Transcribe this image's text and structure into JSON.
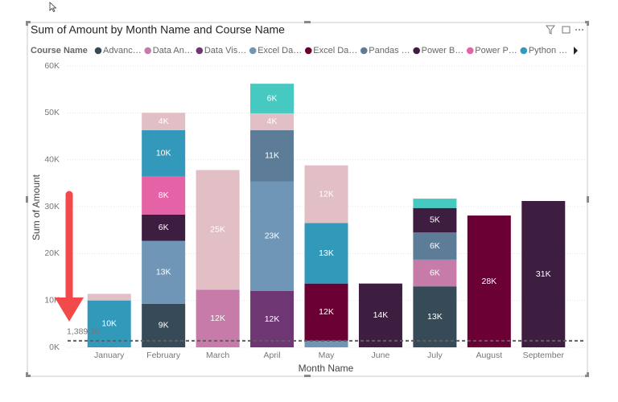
{
  "chart_data": {
    "type": "stacked_bar",
    "title": "Sum of Amount by Month Name and Course Name",
    "legend_title": "Course Name",
    "x_label": "Month Name",
    "y_label": "Sum of Amount",
    "categories": [
      "January",
      "February",
      "March",
      "April",
      "May",
      "June",
      "July",
      "August",
      "September"
    ],
    "series": [
      {
        "name": "Advanc…",
        "color": "#374a57",
        "values": [
          null,
          9300,
          null,
          null,
          null,
          null,
          13000,
          null,
          null
        ],
        "value_labels": [
          null,
          "9K",
          null,
          null,
          null,
          null,
          "13K",
          null,
          null
        ]
      },
      {
        "name": "Data An…",
        "color": "#c77ba9",
        "values": [
          null,
          null,
          12300,
          null,
          null,
          null,
          5700,
          null,
          null
        ],
        "value_labels": [
          null,
          null,
          "12K",
          null,
          null,
          null,
          "6K",
          null,
          null
        ]
      },
      {
        "name": "Data Vis…",
        "color": "#6e3773",
        "values": [
          null,
          null,
          null,
          12000,
          null,
          null,
          null,
          null,
          null
        ],
        "value_labels": [
          null,
          null,
          null,
          "12K",
          null,
          null,
          null,
          null,
          null
        ]
      },
      {
        "name": "Excel Da…",
        "color": "#6f96b6",
        "values": [
          null,
          13400,
          null,
          23400,
          1400,
          null,
          null,
          null,
          null
        ],
        "value_labels": [
          null,
          "13K",
          null,
          "23K",
          null,
          null,
          null,
          null,
          null
        ]
      },
      {
        "name": "Excel Da…",
        "color": "#6a0033",
        "values": [
          null,
          null,
          null,
          null,
          12200,
          null,
          null,
          28100,
          null
        ],
        "value_labels": [
          null,
          null,
          null,
          null,
          "12K",
          null,
          null,
          "28K",
          null
        ]
      },
      {
        "name": "Pandas …",
        "color": "#5c7c97",
        "values": [
          null,
          null,
          null,
          10900,
          null,
          null,
          5800,
          null,
          null
        ],
        "value_labels": [
          null,
          null,
          null,
          "11K",
          null,
          null,
          "6K",
          null,
          null
        ]
      },
      {
        "name": "Power B…",
        "color": "#3e1e40",
        "values": [
          null,
          5600,
          null,
          null,
          null,
          13600,
          5200,
          null,
          31200
        ],
        "value_labels": [
          null,
          "6K",
          null,
          null,
          null,
          "14K",
          "5K",
          null,
          "31K"
        ]
      },
      {
        "name": "Power P…",
        "color": "#e562a6",
        "values": [
          null,
          8100,
          null,
          null,
          null,
          null,
          null,
          null,
          null
        ],
        "value_labels": [
          null,
          "8K",
          null,
          null,
          null,
          null,
          null,
          null,
          null
        ]
      },
      {
        "name": "Python …",
        "color": "#3399bb",
        "values": [
          10000,
          9900,
          null,
          null,
          12900,
          null,
          null,
          null,
          null
        ],
        "value_labels": [
          "10K",
          "10K",
          null,
          null,
          "13K",
          null,
          null,
          null,
          null
        ]
      },
      {
        "color": "#e1bfc4",
        "values": [
          1400,
          3700,
          25500,
          3600,
          12300,
          null,
          null,
          null,
          null
        ],
        "value_labels": [
          null,
          "4K",
          "25K",
          "4K",
          "12K",
          null,
          null,
          null,
          null
        ]
      },
      {
        "color": "#45c9c1",
        "values": [
          null,
          null,
          null,
          6300,
          null,
          null,
          2000,
          null,
          null
        ],
        "value_labels": [
          null,
          null,
          null,
          "6K",
          null,
          null,
          null,
          null,
          null
        ]
      }
    ],
    "ylim": [
      0,
      60000
    ],
    "yticks": [
      {
        "value": 0,
        "label": "0K"
      },
      {
        "value": 10000,
        "label": "10K"
      },
      {
        "value": 20000,
        "label": "20K"
      },
      {
        "value": 30000,
        "label": "30K"
      },
      {
        "value": 40000,
        "label": "40K"
      },
      {
        "value": 50000,
        "label": "50K"
      },
      {
        "value": 60000,
        "label": "60K"
      }
    ],
    "grid": true,
    "reference_line": {
      "value": 1389.36,
      "label": "1,389.36"
    }
  }
}
